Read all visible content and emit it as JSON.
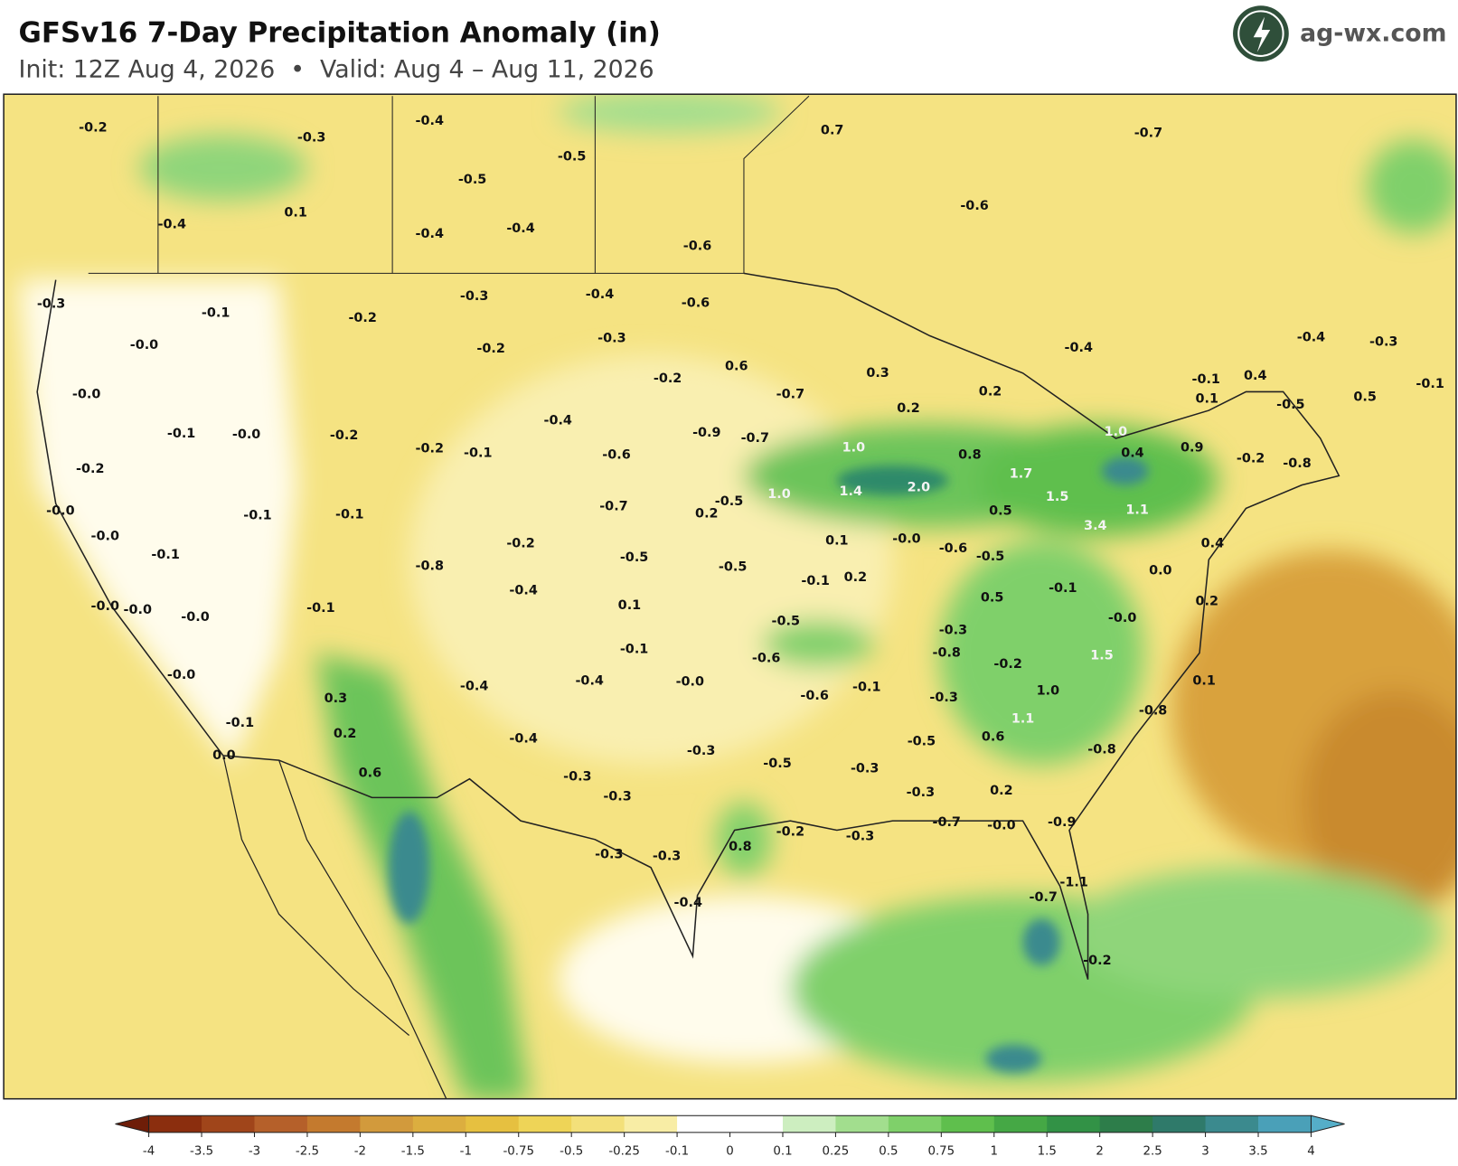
{
  "header": {
    "title": "GFSv16 7-Day Precipitation Anomaly (in)",
    "subtitle": "Init: 12Z Aug 4, 2026  •  Valid: Aug 4 – Aug 11, 2026",
    "brand": "ag-wx.com"
  },
  "map": {
    "labels": [
      "-0.2",
      "-0.3",
      "-0.4",
      "-0.5",
      "-0.5",
      "0.1",
      "-0.4",
      "-0.4",
      "-0.4",
      "-0.6",
      "0.7",
      "-0.7",
      "-0.6",
      "-0.3",
      "-0.1",
      "-0.2",
      "-0.3",
      "-0.4",
      "-0.6",
      "-0.0",
      "-0.2",
      "-0.3",
      "0.6",
      "-0.2",
      "-0.7",
      "0.3",
      "0.2",
      "0.2",
      "-0.4",
      "-0.4",
      "-0.3",
      "-0.0",
      "-0.1",
      "-0.0",
      "-0.2",
      "-0.2",
      "-0.1",
      "-0.4",
      "-0.9",
      "-0.7",
      "-0.6",
      "1.0",
      "0.8",
      "1.0",
      "0.4",
      "0.9",
      "-0.2",
      "-0.8",
      "-0.1",
      "0.1",
      "0.4",
      "-0.5",
      "0.5",
      "-0.1",
      "-0.2",
      "-0.0",
      "-0.1",
      "-0.1",
      "-0.7",
      "-0.5",
      "0.2",
      "1.0",
      "1.4",
      "2.0",
      "1.7",
      "1.5",
      "0.5",
      "3.4",
      "1.1",
      "-0.0",
      "-0.1",
      "-0.2",
      "-0.8",
      "-0.4",
      "-0.5",
      "-0.5",
      "0.1",
      "-0.0",
      "-0.6",
      "-0.5",
      "0.4",
      "0.0",
      "-0.1",
      "0.2",
      "-0.1",
      "0.2",
      "0.5",
      "-0.0",
      "-0.0",
      "-0.0",
      "-0.1",
      "0.1",
      "-0.5",
      "-0.0",
      "-0.3",
      "-0.1",
      "-0.8",
      "-0.2",
      "1.5",
      "-0.6",
      "-0.0",
      "-0.4",
      "-0.4",
      "-0.0",
      "-0.1",
      "-0.6",
      "-0.3",
      "1.0",
      "0.1",
      "-0.8",
      "0.3",
      "-0.1",
      "0.2",
      "1.1",
      "-0.4",
      "-0.5",
      "0.6",
      "-0.3",
      "-0.8",
      "0.0",
      "0.6",
      "-0.5",
      "-0.3",
      "-0.3",
      "-0.3",
      "-0.3",
      "0.2",
      "-0.7",
      "-0.0",
      "-0.9",
      "-0.2",
      "-0.3",
      "0.8",
      "-0.3",
      "-0.3",
      "-1.1",
      "-0.7",
      "-0.4",
      "-0.2"
    ]
  },
  "colorbar": {
    "ticks": [
      -4,
      -3.5,
      -3,
      -2.5,
      -2,
      -1.5,
      -1,
      -0.75,
      -0.5,
      -0.25,
      -0.1,
      0,
      0.1,
      0.25,
      0.5,
      0.75,
      1,
      1.5,
      2,
      2.5,
      3,
      3.5,
      4
    ],
    "colors": [
      "#8b2e0e",
      "#a0451a",
      "#b5602a",
      "#c47a2e",
      "#d29a3c",
      "#dcae3f",
      "#e6c040",
      "#eed457",
      "#f3e07a",
      "#f8eda5",
      "#ffffff",
      "#ffffff",
      "#cdeec0",
      "#a2de8e",
      "#7fd06a",
      "#5fbf4d",
      "#45a845",
      "#329246",
      "#2d7d4a",
      "#2f7a6a",
      "#3b8a8e",
      "#4aa0b8"
    ],
    "extend_colors": [
      "#6e1d08",
      "#55aec8"
    ]
  }
}
